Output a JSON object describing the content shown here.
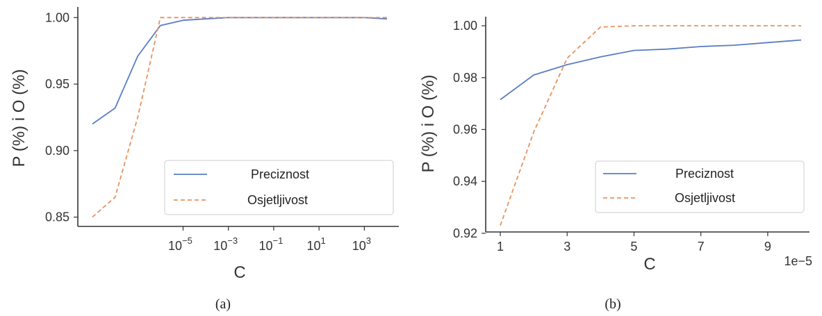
{
  "colors": {
    "precision": "#5a7dc2",
    "sensitivity": "#e8905c",
    "axis": "#333333",
    "legend_border": "#cccccc"
  },
  "chart_data": [
    {
      "type": "line",
      "caption": "(a)",
      "xlabel": "C",
      "ylabel": "P (%) i O (%)",
      "xscale": "log",
      "x": [
        1e-09,
        1e-08,
        1e-07,
        1e-06,
        1e-05,
        0.0001,
        0.001,
        0.01,
        0.1,
        1,
        10,
        100,
        1000,
        10000
      ],
      "xticks": [
        {
          "value": 1e-05,
          "base": "10",
          "exp": "−5"
        },
        {
          "value": 0.001,
          "base": "10",
          "exp": "−3"
        },
        {
          "value": 0.1,
          "base": "10",
          "exp": "−1"
        },
        {
          "value": 10,
          "base": "10",
          "exp": "1"
        },
        {
          "value": 1000,
          "base": "10",
          "exp": "3"
        }
      ],
      "yticks": [
        "0.85",
        "0.90",
        "0.95",
        "1.00"
      ],
      "ylim": [
        0.843,
        1.008
      ],
      "series": [
        {
          "name": "Preciznost",
          "style": "solid",
          "values": [
            0.92,
            0.932,
            0.971,
            0.994,
            0.998,
            0.999,
            1.0,
            1.0,
            1.0,
            1.0,
            1.0,
            1.0,
            1.0,
            0.999
          ]
        },
        {
          "name": "Osjetljivost",
          "style": "dashed",
          "values": [
            0.85,
            0.865,
            0.925,
            1.0,
            1.0,
            1.0,
            1.0,
            1.0,
            1.0,
            1.0,
            1.0,
            1.0,
            1.0,
            1.0
          ]
        }
      ],
      "legend_position": "lower right",
      "grid": false
    },
    {
      "type": "line",
      "caption": "(b)",
      "xlabel": "C",
      "ylabel": "P (%) i O (%)",
      "xscale": "linear",
      "x_offset_label": "1e−5",
      "x": [
        1,
        2,
        3,
        4,
        5,
        6,
        7,
        8,
        9,
        10
      ],
      "xticks": [
        "1",
        "3",
        "5",
        "7",
        "9"
      ],
      "yticks": [
        "0.92",
        "0.94",
        "0.96",
        "0.98",
        "1.00"
      ],
      "ylim": [
        0.9205,
        1.0035
      ],
      "series": [
        {
          "name": "Preciznost",
          "style": "solid",
          "values": [
            0.9715,
            0.981,
            0.985,
            0.988,
            0.9905,
            0.991,
            0.992,
            0.9925,
            0.9935,
            0.9945
          ]
        },
        {
          "name": "Osjetljivost",
          "style": "dashed",
          "values": [
            0.923,
            0.959,
            0.9875,
            0.9995,
            1.0,
            1.0,
            1.0,
            1.0,
            1.0,
            1.0
          ]
        }
      ],
      "legend_position": "lower right",
      "grid": false
    }
  ]
}
